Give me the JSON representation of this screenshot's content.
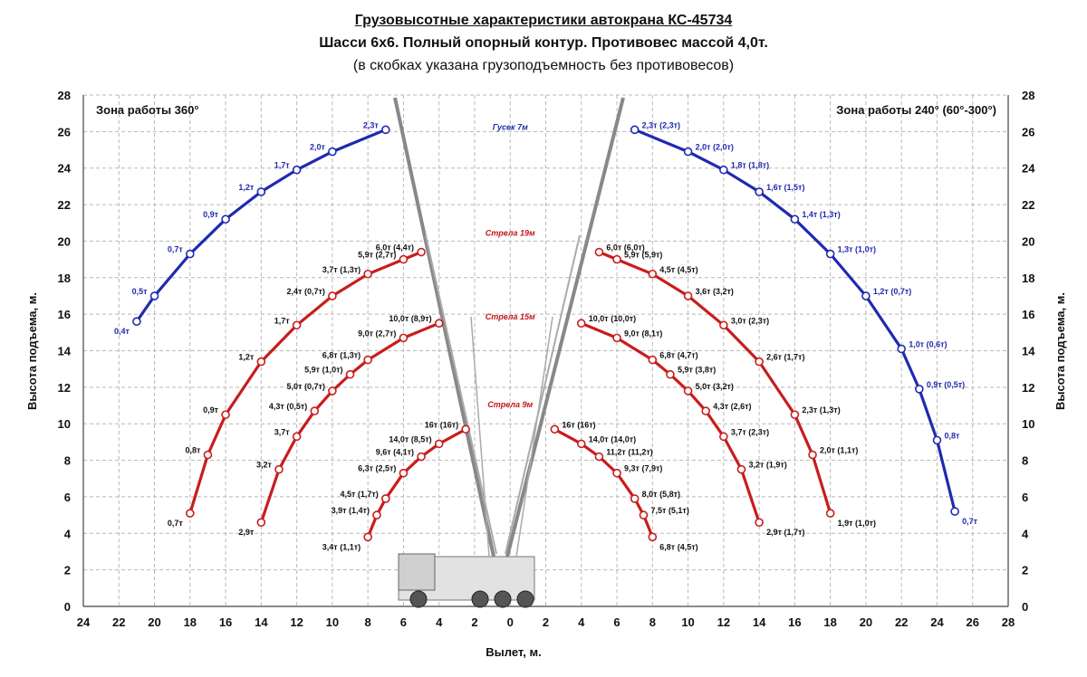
{
  "title": "Грузовысотные характеристики автокрана КС-45734",
  "subtitle": "Шасси 6х6. Полный опорный контур. Противовес массой 4,0т.",
  "note": "(в скобках указана грузоподъемность без противовесов)",
  "chart_data": {
    "type": "line",
    "xlabel": "Вылет, м.",
    "ylabel": "Высота подъема, м.",
    "ylabel_right": "Высота подъема, м.",
    "x_ticks": [
      "24",
      "22",
      "20",
      "18",
      "16",
      "14",
      "12",
      "10",
      "8",
      "6",
      "4",
      "2",
      "0",
      "2",
      "4",
      "6",
      "8",
      "10",
      "12",
      "14",
      "16",
      "18",
      "20",
      "22",
      "24",
      "26",
      "28"
    ],
    "y_ticks": [
      0,
      2,
      4,
      6,
      8,
      10,
      12,
      14,
      16,
      18,
      20,
      22,
      24,
      26,
      28
    ],
    "xlim": [
      -24,
      28
    ],
    "ylim": [
      0,
      28
    ],
    "grid": true,
    "zones": {
      "left": "Зона работы 360°",
      "right": "Зона работы 240° (60°-300°)"
    },
    "boom_labels": [
      {
        "text": "Гусек 7м",
        "y": 26.1,
        "color": "#1f2aa8"
      },
      {
        "text": "Стрела 19м",
        "y": 20.3,
        "color": "#c0161a"
      },
      {
        "text": "Стрела 15м",
        "y": 15.7,
        "color": "#c0161a"
      },
      {
        "text": "Стрела 9м",
        "y": 10.9,
        "color": "#c0161a"
      }
    ],
    "series": [
      {
        "name": "Гусек 7м",
        "side": "left",
        "color": "#1f2ab0",
        "points": [
          {
            "x": 21,
            "y": 15.6,
            "label": "0,4т"
          },
          {
            "x": 20,
            "y": 17.0,
            "label": "0,5т"
          },
          {
            "x": 18,
            "y": 19.3,
            "label": "0,7т"
          },
          {
            "x": 16,
            "y": 21.2,
            "label": "0,9т"
          },
          {
            "x": 14,
            "y": 22.7,
            "label": "1,2т"
          },
          {
            "x": 12,
            "y": 23.9,
            "label": "1,7т"
          },
          {
            "x": 10,
            "y": 24.9,
            "label": "2,0т"
          },
          {
            "x": 7,
            "y": 26.1,
            "label": "2,3т"
          }
        ]
      },
      {
        "name": "Стрела 19м",
        "side": "left",
        "color": "#c91c1c",
        "points": [
          {
            "x": 18,
            "y": 5.1,
            "label": "0,7т"
          },
          {
            "x": 17,
            "y": 8.3,
            "label": "0,8т"
          },
          {
            "x": 16,
            "y": 10.5,
            "label": "0,9т"
          },
          {
            "x": 14,
            "y": 13.4,
            "label": "1,2т"
          },
          {
            "x": 12,
            "y": 15.4,
            "label": "1,7т"
          },
          {
            "x": 10,
            "y": 17.0,
            "label": "2,4т (0,7т)"
          },
          {
            "x": 8,
            "y": 18.2,
            "label": "3,7т (1,3т)"
          },
          {
            "x": 6,
            "y": 19.0,
            "label": "5,9т (2,7т)"
          },
          {
            "x": 5,
            "y": 19.4,
            "label": "6,0т (4,4т)"
          }
        ]
      },
      {
        "name": "Стрела 15м",
        "side": "left",
        "color": "#c91c1c",
        "points": [
          {
            "x": 14,
            "y": 4.6,
            "label": "2,9т"
          },
          {
            "x": 13,
            "y": 7.5,
            "label": "3,2т"
          },
          {
            "x": 12,
            "y": 9.3,
            "label": "3,7т"
          },
          {
            "x": 11,
            "y": 10.7,
            "label": "4,3т (0,5т)"
          },
          {
            "x": 10,
            "y": 11.8,
            "label": "5,0т (0,7т)"
          },
          {
            "x": 9,
            "y": 12.7,
            "label": "5,9т (1,0т)"
          },
          {
            "x": 8,
            "y": 13.5,
            "label": "6,8т (1,3т)"
          },
          {
            "x": 6,
            "y": 14.7,
            "label": "9,0т (2,7т)"
          },
          {
            "x": 4,
            "y": 15.5,
            "label": "10,0т (8,9т)"
          }
        ]
      },
      {
        "name": "Стрела 9м",
        "side": "left",
        "color": "#c91c1c",
        "points": [
          {
            "x": 8,
            "y": 3.8,
            "label": "3,4т (1,1т)"
          },
          {
            "x": 7.5,
            "y": 5.0,
            "label": "3,9т (1,4т)"
          },
          {
            "x": 7,
            "y": 5.9,
            "label": "4,5т (1,7т)"
          },
          {
            "x": 6,
            "y": 7.3,
            "label": "6,3т (2,5т)"
          },
          {
            "x": 5,
            "y": 8.2,
            "label": "9,6т (4,1т)"
          },
          {
            "x": 4,
            "y": 8.9,
            "label": "14,0т (8,5т)"
          },
          {
            "x": 2.5,
            "y": 9.7,
            "label": "16т (16т)"
          }
        ]
      },
      {
        "name": "Гусек 7м",
        "side": "right",
        "color": "#1f2ab0",
        "points": [
          {
            "x": 7,
            "y": 26.1,
            "label": "2,3т (2,3т)"
          },
          {
            "x": 10,
            "y": 24.9,
            "label": "2,0т (2,0т)"
          },
          {
            "x": 12,
            "y": 23.9,
            "label": "1,8т (1,8т)"
          },
          {
            "x": 14,
            "y": 22.7,
            "label": "1,6т (1,5т)"
          },
          {
            "x": 16,
            "y": 21.2,
            "label": "1,4т (1,3т)"
          },
          {
            "x": 18,
            "y": 19.3,
            "label": "1,3т (1,0т)"
          },
          {
            "x": 20,
            "y": 17.0,
            "label": "1,2т (0,7т)"
          },
          {
            "x": 22,
            "y": 14.1,
            "label": "1,0т (0,6т)"
          },
          {
            "x": 23,
            "y": 11.9,
            "label": "0,9т (0,5т)"
          },
          {
            "x": 24,
            "y": 9.1,
            "label": "0,8т"
          },
          {
            "x": 25,
            "y": 5.2,
            "label": "0,7т"
          }
        ]
      },
      {
        "name": "Стрела 19м",
        "side": "right",
        "color": "#c91c1c",
        "points": [
          {
            "x": 5,
            "y": 19.4,
            "label": "6,0т (6,0т)"
          },
          {
            "x": 6,
            "y": 19.0,
            "label": "5,9т (5,9т)"
          },
          {
            "x": 8,
            "y": 18.2,
            "label": "4,5т (4,5т)"
          },
          {
            "x": 10,
            "y": 17.0,
            "label": "3,6т (3,2т)"
          },
          {
            "x": 12,
            "y": 15.4,
            "label": "3,0т (2,3т)"
          },
          {
            "x": 14,
            "y": 13.4,
            "label": "2,6т (1,7т)"
          },
          {
            "x": 16,
            "y": 10.5,
            "label": "2,3т (1,3т)"
          },
          {
            "x": 17,
            "y": 8.3,
            "label": "2,0т (1,1т)"
          },
          {
            "x": 18,
            "y": 5.1,
            "label": "1,9т (1,0т)"
          }
        ]
      },
      {
        "name": "Стрела 15м",
        "side": "right",
        "color": "#c91c1c",
        "points": [
          {
            "x": 4,
            "y": 15.5,
            "label": "10,0т (10,0т)"
          },
          {
            "x": 6,
            "y": 14.7,
            "label": "9,0т (8,1т)"
          },
          {
            "x": 8,
            "y": 13.5,
            "label": "6,8т (4,7т)"
          },
          {
            "x": 9,
            "y": 12.7,
            "label": "5,9т (3,8т)"
          },
          {
            "x": 10,
            "y": 11.8,
            "label": "5,0т (3,2т)"
          },
          {
            "x": 11,
            "y": 10.7,
            "label": "4,3т (2,6т)"
          },
          {
            "x": 12,
            "y": 9.3,
            "label": "3,7т (2,3т)"
          },
          {
            "x": 13,
            "y": 7.5,
            "label": "3,2т (1,9т)"
          },
          {
            "x": 14,
            "y": 4.6,
            "label": "2,9т (1,7т)"
          }
        ]
      },
      {
        "name": "Стрела 9м",
        "side": "right",
        "color": "#c91c1c",
        "points": [
          {
            "x": 2.5,
            "y": 9.7,
            "label": "16т (16т)"
          },
          {
            "x": 4,
            "y": 8.9,
            "label": "14,0т (14,0т)"
          },
          {
            "x": 5,
            "y": 8.2,
            "label": "11,2т (11,2т)"
          },
          {
            "x": 6,
            "y": 7.3,
            "label": "9,3т (7,9т)"
          },
          {
            "x": 7,
            "y": 5.9,
            "label": "8,0т (5,8т)"
          },
          {
            "x": 7.5,
            "y": 5.0,
            "label": "7,5т (5,1т)"
          },
          {
            "x": 8,
            "y": 3.8,
            "label": "6,8т (4,5т)"
          }
        ]
      }
    ]
  }
}
